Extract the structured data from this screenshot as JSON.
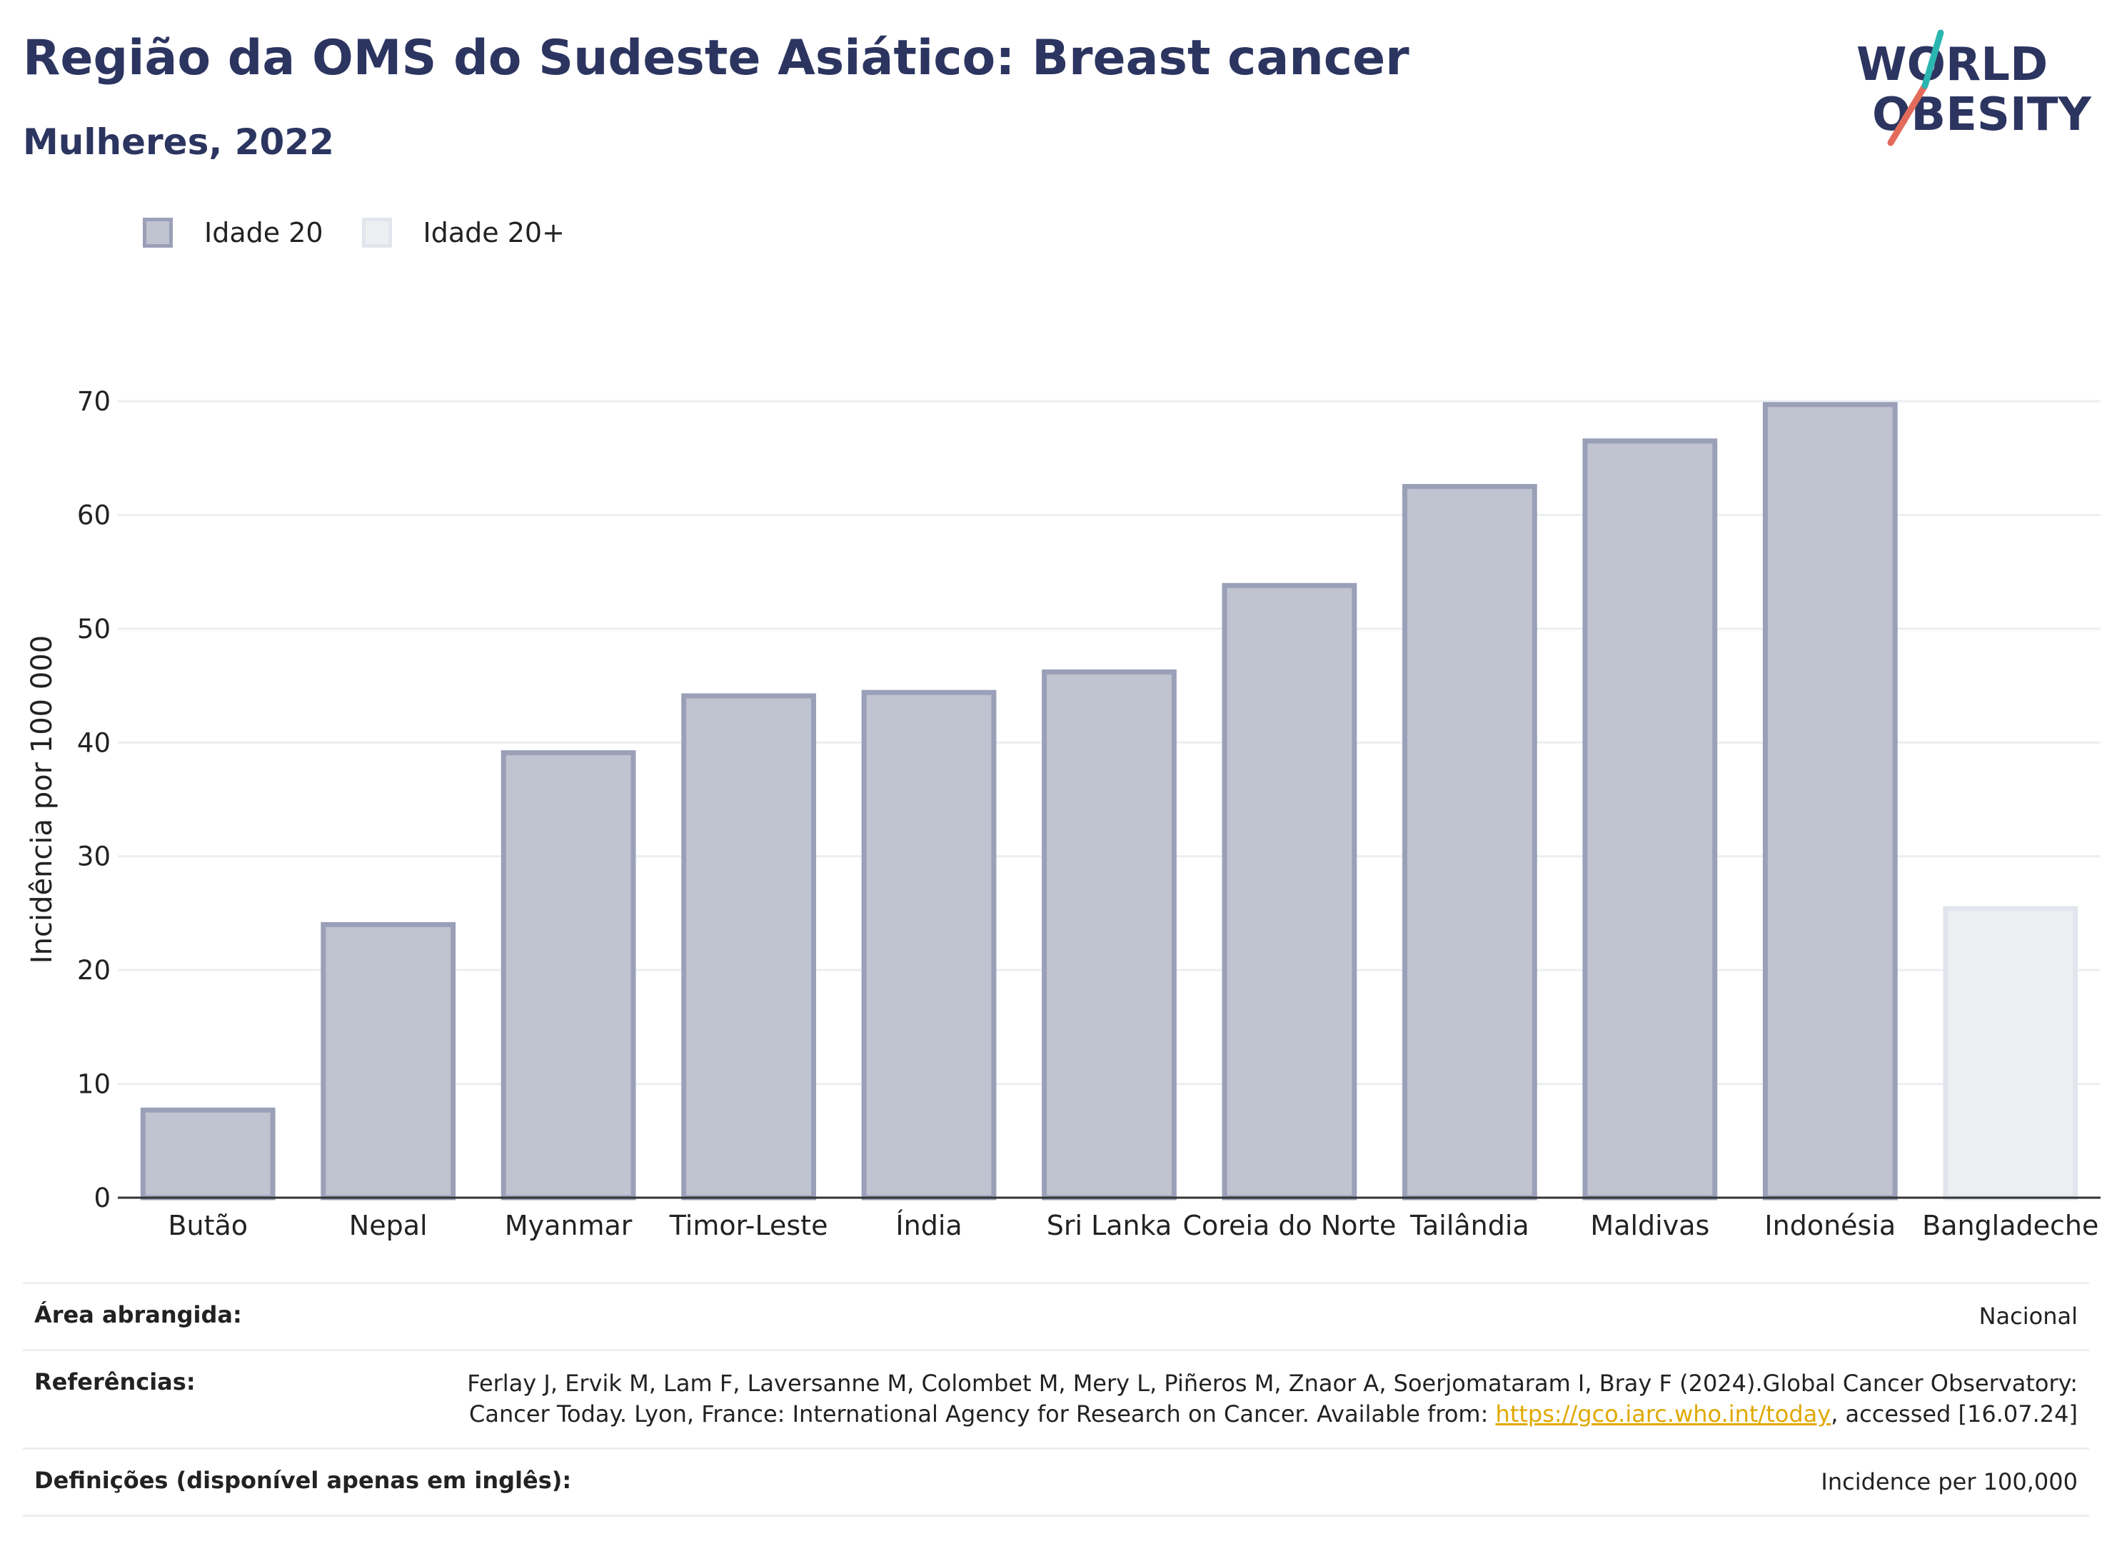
{
  "header": {
    "title": "Região da OMS do Sudeste Asiático: Breast cancer",
    "subtitle": "Mulheres, 2022",
    "logo_line1": "WORLD",
    "logo_line2": "OBESITY"
  },
  "legend": {
    "items": [
      {
        "label": "Idade 20",
        "color": "#c0c3d0"
      },
      {
        "label": "Idade 20+",
        "color": "#eeeff3"
      }
    ]
  },
  "chart_data": {
    "type": "bar",
    "categories": [
      "Butão",
      "Nepal",
      "Myanmar",
      "Timor-Leste",
      "Índia",
      "Sri Lanka",
      "Coreia do Norte",
      "Tailândia",
      "Maldivas",
      "Indonésia",
      "Bangladeche"
    ],
    "values": [
      7.7,
      24.0,
      39.1,
      44.1,
      44.4,
      46.2,
      53.8,
      62.5,
      66.5,
      69.7,
      25.4
    ],
    "series_group": [
      "Idade 20",
      "Idade 20",
      "Idade 20",
      "Idade 20",
      "Idade 20",
      "Idade 20",
      "Idade 20",
      "Idade 20",
      "Idade 20",
      "Idade 20",
      "Idade 20+"
    ],
    "ylabel": "Incidência por 100 000",
    "ylim": [
      0,
      70
    ],
    "yticks": [
      0,
      10,
      20,
      30,
      40,
      50,
      60,
      70
    ],
    "grid": true,
    "legend_position": "top-left",
    "colors": {
      "Idade 20": "#c0c3d0",
      "Idade 20+": "#eeeff3",
      "Idade 20 border": "#9aa0b8",
      "Idade 20+ border": "#e3e5ec"
    }
  },
  "footer": {
    "area_label": "Área abrangida:",
    "area_value": "Nacional",
    "refs_label": "Referências:",
    "refs_text_1": "Ferlay J, Ervik M, Lam F, Laversanne M, Colombet M, Mery L, Piñeros M, Znaor A, Soerjomataram I, Bray F (2024).Global Cancer Observatory: Cancer Today. Lyon, France: International Agency for Research on Cancer. Available from: ",
    "refs_link": "https://gco.iarc.who.int/today",
    "refs_text_2": ", accessed [16.07.24]",
    "defs_label": "Definições (disponível apenas em inglês):",
    "defs_value": "Incidence per 100,000"
  }
}
